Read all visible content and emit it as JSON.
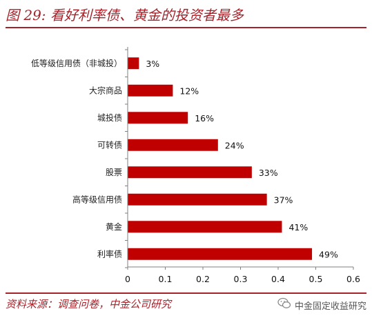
{
  "header": {
    "title": "图 29: 看好利率债、黄金的投资者最多"
  },
  "footer": {
    "source": "资料来源：调查问卷，中金公司研究",
    "brand": "中金固定收益研究",
    "brand_icon": "wechat-icon"
  },
  "colors": {
    "accent": "#a5222a",
    "bar": "#c00000"
  },
  "chart_data": {
    "type": "bar",
    "orientation": "horizontal",
    "title": "看好利率债、黄金的投资者最多",
    "categories": [
      "低等级信用债（非城投）",
      "大宗商品",
      "城投债",
      "可转债",
      "股票",
      "高等级信用债",
      "黄金",
      "利率债"
    ],
    "values": [
      0.03,
      0.12,
      0.16,
      0.24,
      0.33,
      0.37,
      0.41,
      0.49
    ],
    "data_labels": [
      "3%",
      "12%",
      "16%",
      "24%",
      "33%",
      "37%",
      "41%",
      "49%"
    ],
    "xlim": [
      0,
      0.6
    ],
    "xticks": [
      "0",
      "0.1",
      "0.2",
      "0.3",
      "0.4",
      "0.5",
      "0.6"
    ],
    "grid": false,
    "legend": "none"
  }
}
